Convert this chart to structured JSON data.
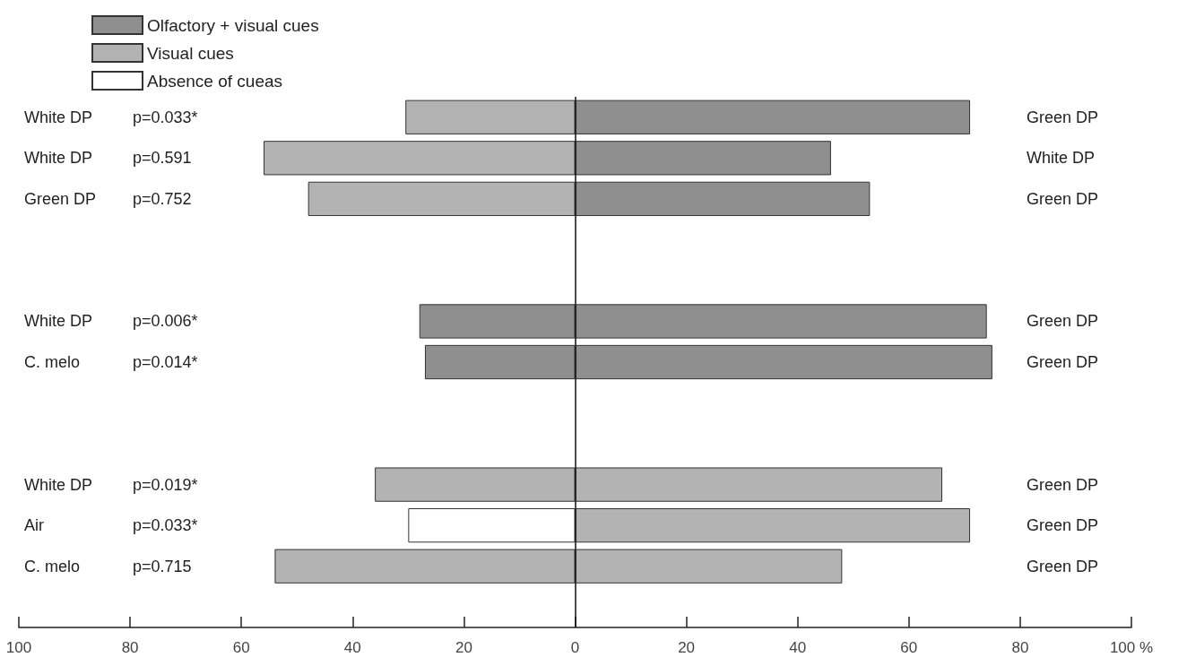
{
  "chart_data": {
    "type": "bar",
    "orientation": "horizontal",
    "stacked": true,
    "legend": "top left",
    "ref_lines": [
      {
        "axis": "x",
        "value": 0,
        "color": "#111111"
      }
    ],
    "categories": [
      "White DP",
      "White DP",
      "Green DP",
      null,
      null,
      "White DP",
      "C. melo",
      null,
      null,
      "White DP",
      "Air",
      "C. melo",
      null
    ],
    "y2_categories": [
      "Green DP",
      "White DP",
      "Green DP",
      null,
      null,
      "Green DP",
      "Green DP",
      null,
      null,
      "Green DP",
      "Green DP",
      "Green DP",
      null
    ],
    "annotations": [
      "p=0.033*",
      "p=0.591",
      "p=0.752",
      "p=0.006*",
      "p=0.014*",
      "p=0.019*",
      "p=0.033*",
      "p=0.715"
    ],
    "xlim": [
      -100,
      100
    ],
    "xticks": [
      {
        "value": -100,
        "label": "100"
      },
      {
        "value": -80,
        "label": "80"
      },
      {
        "value": -60,
        "label": "60"
      },
      {
        "value": -40,
        "label": "40"
      },
      {
        "value": -20,
        "label": "20"
      },
      0,
      20,
      40,
      60,
      80,
      {
        "value": 100,
        "label": "100 %"
      }
    ],
    "series": [
      {
        "name": "Olfactory + visual cues",
        "color": "#8f8f8f",
        "values": [
          71,
          46,
          53,
          null,
          null,
          74,
          75,
          null,
          null,
          null,
          null,
          null,
          null
        ]
      },
      {
        "color": "#8f8f8f",
        "values": [
          null,
          null,
          null,
          null,
          null,
          -28,
          -27,
          null,
          null,
          null,
          null,
          null,
          null
        ]
      },
      {
        "name": "Visual cues",
        "color": "#b3b3b3",
        "values": [
          -30.5,
          -56,
          -48,
          null,
          null,
          null,
          null,
          null,
          null,
          -36,
          null,
          -54,
          null
        ]
      },
      {
        "color": "#b3b3b3",
        "values": [
          null,
          null,
          null,
          null,
          null,
          null,
          null,
          null,
          null,
          66,
          71,
          48,
          null
        ]
      },
      {
        "name": "Absence of cueas",
        "color": "#ffffff",
        "values": [
          null,
          null,
          null,
          null,
          null,
          null,
          null,
          null,
          null,
          null,
          -30,
          null,
          null
        ]
      }
    ]
  }
}
